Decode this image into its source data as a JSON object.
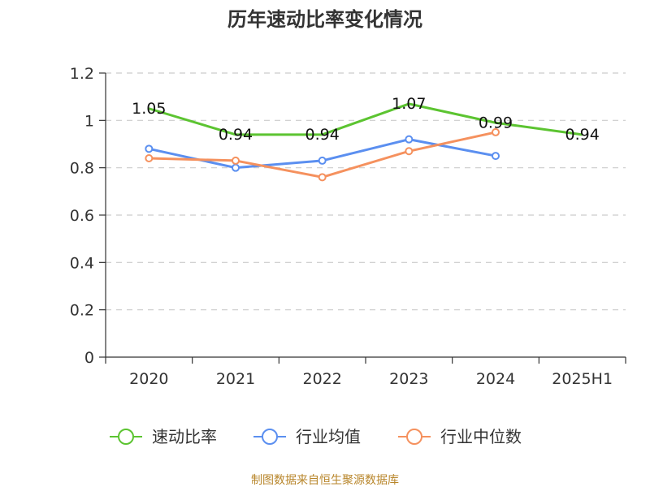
{
  "title": "历年速动比率变化情况",
  "source": "制图数据来自恒生聚源数据库",
  "chart_data": {
    "type": "line",
    "title": "历年速动比率变化情况",
    "categories": [
      "2020",
      "2021",
      "2022",
      "2023",
      "2024",
      "2025H1"
    ],
    "y_ticks": [
      "0",
      "0.2",
      "0.4",
      "0.6",
      "0.8",
      "1",
      "1.2"
    ],
    "ylim": [
      0,
      1.2
    ],
    "grid": true,
    "legend_position": "bottom",
    "series": [
      {
        "name": "速动比率",
        "color": "#5cc431",
        "values": [
          1.05,
          0.94,
          0.94,
          1.07,
          0.99,
          0.94
        ],
        "labels": [
          "1.05",
          "0.94",
          "0.94",
          "1.07",
          "0.99",
          "0.94"
        ]
      },
      {
        "name": "行业均值",
        "color": "#5b8ff0",
        "values": [
          0.88,
          0.8,
          0.83,
          0.92,
          0.85,
          null
        ]
      },
      {
        "name": "行业中位数",
        "color": "#f5915e",
        "values": [
          0.84,
          0.83,
          0.76,
          0.87,
          0.95,
          null
        ]
      }
    ]
  }
}
